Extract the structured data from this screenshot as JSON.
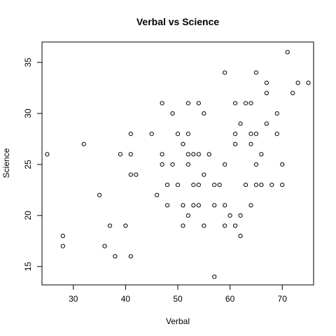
{
  "chart_data": {
    "type": "scatter",
    "title": "Verbal vs Science",
    "xlabel": "Verbal",
    "ylabel": "Science",
    "xlim": [
      24,
      76
    ],
    "ylim": [
      13.2,
      37
    ],
    "xticks": [
      30,
      40,
      50,
      60,
      70
    ],
    "yticks": [
      15,
      20,
      25,
      30,
      35
    ],
    "xtick_labels": [
      "30",
      "40",
      "50",
      "60",
      "70"
    ],
    "ytick_labels": [
      "15",
      "20",
      "25",
      "30",
      "35"
    ],
    "grid": false,
    "legend": "none",
    "marker": "open-circle",
    "points": [
      [
        25,
        26
      ],
      [
        28,
        18
      ],
      [
        28,
        17
      ],
      [
        32,
        27
      ],
      [
        35,
        22
      ],
      [
        36,
        17
      ],
      [
        37,
        19
      ],
      [
        38,
        16
      ],
      [
        39,
        26
      ],
      [
        40,
        19
      ],
      [
        41,
        28
      ],
      [
        41,
        26
      ],
      [
        41,
        24
      ],
      [
        41,
        16
      ],
      [
        42,
        24
      ],
      [
        45,
        28
      ],
      [
        46,
        22
      ],
      [
        47,
        31
      ],
      [
        47,
        26
      ],
      [
        47,
        25
      ],
      [
        48,
        23
      ],
      [
        48,
        21
      ],
      [
        49,
        30
      ],
      [
        49,
        25
      ],
      [
        50,
        28
      ],
      [
        50,
        23
      ],
      [
        51,
        27
      ],
      [
        51,
        21
      ],
      [
        51,
        19
      ],
      [
        52,
        31
      ],
      [
        52,
        28
      ],
      [
        52,
        26
      ],
      [
        52,
        25
      ],
      [
        52,
        20
      ],
      [
        53,
        26
      ],
      [
        53,
        23
      ],
      [
        53,
        21
      ],
      [
        54,
        31
      ],
      [
        54,
        26
      ],
      [
        54,
        23
      ],
      [
        54,
        21
      ],
      [
        55,
        30
      ],
      [
        55,
        24
      ],
      [
        55,
        19
      ],
      [
        56,
        26
      ],
      [
        57,
        23
      ],
      [
        57,
        21
      ],
      [
        57,
        14
      ],
      [
        58,
        23
      ],
      [
        59,
        34
      ],
      [
        59,
        25
      ],
      [
        59,
        21
      ],
      [
        59,
        19
      ],
      [
        60,
        20
      ],
      [
        61,
        31
      ],
      [
        61,
        28
      ],
      [
        61,
        27
      ],
      [
        61,
        19
      ],
      [
        62,
        29
      ],
      [
        62,
        20
      ],
      [
        62,
        18
      ],
      [
        63,
        31
      ],
      [
        63,
        23
      ],
      [
        64,
        31
      ],
      [
        64,
        28
      ],
      [
        64,
        27
      ],
      [
        64,
        21
      ],
      [
        65,
        34
      ],
      [
        65,
        28
      ],
      [
        65,
        25
      ],
      [
        65,
        23
      ],
      [
        66,
        26
      ],
      [
        66,
        23
      ],
      [
        67,
        33
      ],
      [
        67,
        32
      ],
      [
        67,
        29
      ],
      [
        68,
        23
      ],
      [
        69,
        30
      ],
      [
        69,
        28
      ],
      [
        70,
        25
      ],
      [
        70,
        23
      ],
      [
        71,
        36
      ],
      [
        72,
        32
      ],
      [
        73,
        33
      ],
      [
        75,
        33
      ]
    ]
  }
}
